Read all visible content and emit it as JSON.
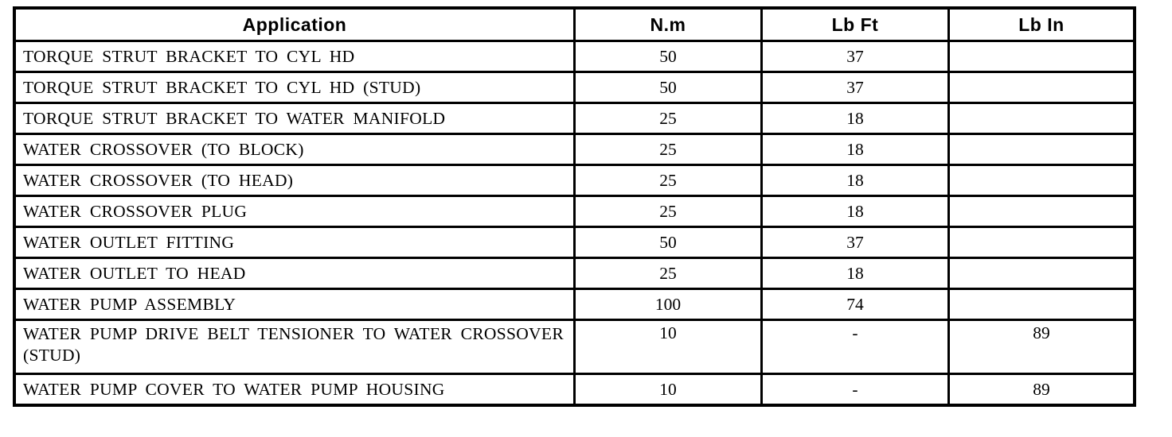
{
  "colors": {
    "background": "#ffffff",
    "border": "#000000",
    "text": "#000000"
  },
  "table": {
    "columns": [
      "Application",
      "N.m",
      "Lb Ft",
      "Lb In"
    ],
    "rows": [
      {
        "application": "TORQUE STRUT BRACKET TO CYL HD",
        "nm": "50",
        "lb_ft": "37",
        "lb_in": ""
      },
      {
        "application": "TORQUE STRUT BRACKET TO CYL HD (STUD)",
        "nm": "50",
        "lb_ft": "37",
        "lb_in": ""
      },
      {
        "application": "TORQUE STRUT BRACKET TO WATER MANIFOLD",
        "nm": "25",
        "lb_ft": "18",
        "lb_in": ""
      },
      {
        "application": "WATER CROSSOVER (TO BLOCK)",
        "nm": "25",
        "lb_ft": "18",
        "lb_in": ""
      },
      {
        "application": "WATER CROSSOVER (TO HEAD)",
        "nm": "25",
        "lb_ft": "18",
        "lb_in": ""
      },
      {
        "application": "WATER CROSSOVER PLUG",
        "nm": "25",
        "lb_ft": "18",
        "lb_in": ""
      },
      {
        "application": "WATER OUTLET FITTING",
        "nm": "50",
        "lb_ft": "37",
        "lb_in": ""
      },
      {
        "application": "WATER OUTLET TO HEAD",
        "nm": "25",
        "lb_ft": "18",
        "lb_in": ""
      },
      {
        "application": "WATER PUMP ASSEMBLY",
        "nm": "100",
        "lb_ft": "74",
        "lb_in": ""
      },
      {
        "application": "WATER PUMP DRIVE BELT TENSIONER TO WATER CROSSOVER (STUD)",
        "nm": "10",
        "lb_ft": "-",
        "lb_in": "89"
      },
      {
        "application": "WATER PUMP COVER TO WATER PUMP HOUSING",
        "nm": "10",
        "lb_ft": "-",
        "lb_in": "89"
      }
    ]
  }
}
